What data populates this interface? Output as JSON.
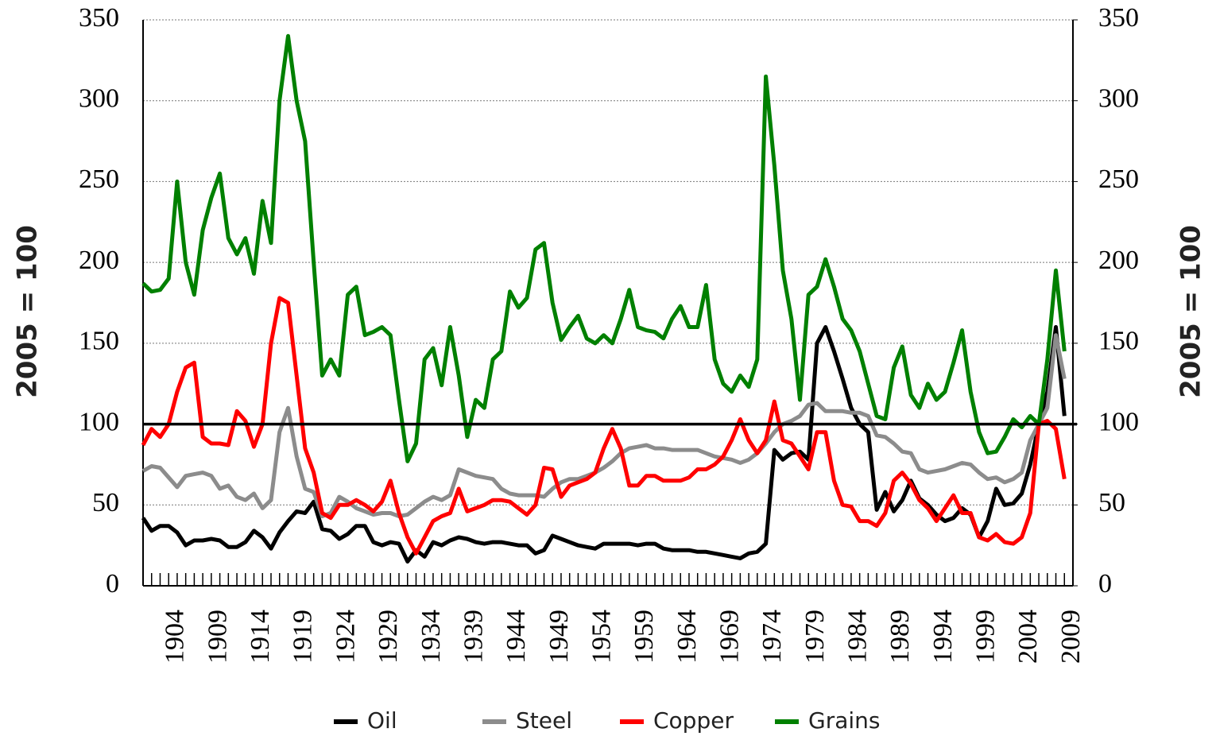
{
  "chart_data": {
    "type": "line",
    "ylabel": "2005 = 100",
    "y2label": "2005 = 100",
    "x": [
      1900,
      1901,
      1902,
      1903,
      1904,
      1905,
      1906,
      1907,
      1908,
      1909,
      1910,
      1911,
      1912,
      1913,
      1914,
      1915,
      1916,
      1917,
      1918,
      1919,
      1920,
      1921,
      1922,
      1923,
      1924,
      1925,
      1926,
      1927,
      1928,
      1929,
      1930,
      1931,
      1932,
      1933,
      1934,
      1935,
      1936,
      1937,
      1938,
      1939,
      1940,
      1941,
      1942,
      1943,
      1944,
      1945,
      1946,
      1947,
      1948,
      1949,
      1950,
      1951,
      1952,
      1953,
      1954,
      1955,
      1956,
      1957,
      1958,
      1959,
      1960,
      1961,
      1962,
      1963,
      1964,
      1965,
      1966,
      1967,
      1968,
      1969,
      1970,
      1971,
      1972,
      1973,
      1974,
      1975,
      1976,
      1977,
      1978,
      1979,
      1980,
      1981,
      1982,
      1983,
      1984,
      1985,
      1986,
      1987,
      1988,
      1989,
      1990,
      1991,
      1992,
      1993,
      1994,
      1995,
      1996,
      1997,
      1998,
      1999,
      2000,
      2001,
      2002,
      2003,
      2004,
      2005,
      2006,
      2007,
      2008
    ],
    "series": [
      {
        "name": "Oil",
        "color": "#000000",
        "values": [
          42,
          34,
          37,
          37,
          33,
          25,
          28,
          28,
          29,
          28,
          24,
          24,
          27,
          34,
          30,
          23,
          33,
          40,
          46,
          45,
          52,
          35,
          34,
          29,
          32,
          37,
          37,
          27,
          25,
          27,
          26,
          15,
          22,
          18,
          27,
          25,
          28,
          30,
          29,
          27,
          26,
          27,
          27,
          26,
          25,
          25,
          20,
          22,
          31,
          29,
          27,
          25,
          24,
          23,
          26,
          26,
          26,
          26,
          25,
          26,
          26,
          23,
          22,
          22,
          22,
          21,
          21,
          20,
          19,
          18,
          17,
          20,
          21,
          26,
          84,
          78,
          82,
          83,
          78,
          150,
          160,
          145,
          128,
          110,
          100,
          95,
          47,
          58,
          46,
          53,
          65,
          54,
          50,
          44,
          40,
          42,
          48,
          44,
          30,
          40,
          60,
          50,
          51,
          57,
          75,
          100,
          120,
          160,
          105
        ]
      },
      {
        "name": "Steel",
        "color": "#8c8c8c",
        "values": [
          71,
          74,
          73,
          67,
          61,
          68,
          69,
          70,
          68,
          60,
          62,
          55,
          53,
          57,
          48,
          53,
          95,
          110,
          80,
          60,
          58,
          43,
          45,
          55,
          52,
          48,
          46,
          44,
          45,
          45,
          43,
          44,
          48,
          52,
          55,
          53,
          56,
          72,
          70,
          68,
          67,
          66,
          60,
          57,
          56,
          56,
          56,
          55,
          60,
          64,
          66,
          66,
          68,
          70,
          73,
          77,
          82,
          85,
          86,
          87,
          85,
          85,
          84,
          84,
          84,
          84,
          82,
          80,
          79,
          78,
          76,
          78,
          82,
          88,
          95,
          100,
          102,
          105,
          112,
          113,
          108,
          108,
          108,
          107,
          107,
          105,
          93,
          92,
          88,
          83,
          82,
          72,
          70,
          71,
          72,
          74,
          76,
          75,
          70,
          66,
          67,
          64,
          66,
          70,
          90,
          100,
          110,
          155,
          128
        ]
      },
      {
        "name": "Copper",
        "color": "#ff0000",
        "values": [
          87,
          97,
          92,
          100,
          120,
          135,
          138,
          92,
          88,
          88,
          87,
          108,
          102,
          86,
          100,
          150,
          178,
          175,
          130,
          85,
          70,
          45,
          42,
          50,
          50,
          53,
          50,
          46,
          52,
          65,
          45,
          30,
          20,
          30,
          40,
          43,
          45,
          60,
          46,
          48,
          50,
          53,
          53,
          52,
          48,
          44,
          50,
          73,
          72,
          55,
          62,
          64,
          66,
          70,
          85,
          97,
          85,
          62,
          62,
          68,
          68,
          65,
          65,
          65,
          67,
          72,
          72,
          75,
          80,
          90,
          103,
          90,
          82,
          90,
          114,
          90,
          88,
          80,
          72,
          95,
          95,
          65,
          50,
          49,
          40,
          40,
          37,
          45,
          65,
          70,
          63,
          53,
          48,
          40,
          48,
          56,
          45,
          45,
          30,
          28,
          32,
          27,
          26,
          30,
          45,
          100,
          102,
          97,
          66
        ]
      },
      {
        "name": "Grains",
        "color": "#008000",
        "values": [
          187,
          182,
          183,
          190,
          250,
          200,
          180,
          220,
          240,
          255,
          215,
          205,
          215,
          193,
          238,
          212,
          300,
          340,
          300,
          275,
          200,
          130,
          140,
          130,
          180,
          185,
          155,
          157,
          160,
          155,
          115,
          77,
          88,
          140,
          147,
          124,
          160,
          130,
          92,
          115,
          110,
          140,
          145,
          182,
          172,
          178,
          208,
          212,
          175,
          152,
          160,
          167,
          153,
          150,
          155,
          150,
          165,
          183,
          160,
          158,
          157,
          153,
          165,
          173,
          160,
          160,
          186,
          140,
          125,
          120,
          130,
          123,
          140,
          315,
          260,
          195,
          165,
          115,
          180,
          185,
          202,
          185,
          165,
          158,
          145,
          125,
          105,
          103,
          135,
          148,
          118,
          110,
          125,
          115,
          120,
          138,
          158,
          120,
          95,
          82,
          83,
          92,
          103,
          98,
          105,
          100,
          140,
          195,
          145
        ]
      }
    ],
    "reference_line": 100,
    "xlim": [
      1900,
      2009
    ],
    "xticks": [
      1904,
      1909,
      1914,
      1919,
      1924,
      1929,
      1934,
      1939,
      1944,
      1949,
      1954,
      1959,
      1964,
      1969,
      1974,
      1979,
      1984,
      1989,
      1994,
      1999,
      2004,
      2009
    ],
    "xminor_ticks": [
      1900,
      1901,
      1902,
      1903,
      1904,
      1905,
      1906,
      1907,
      1908,
      1909,
      1910,
      1911,
      1912,
      1913,
      1914,
      1915,
      1916,
      1917,
      1918,
      1919,
      1920,
      1921,
      1922,
      1923,
      1924,
      1925,
      1926,
      1927,
      1928,
      1929,
      1930,
      1931,
      1932,
      1933,
      1934,
      1935,
      1936,
      1937,
      1938,
      1939,
      1940,
      1941,
      1942,
      1943,
      1944,
      1945,
      1946,
      1947,
      1948,
      1949,
      1950,
      1951,
      1952,
      1953,
      1954,
      1955,
      1956,
      1957,
      1958,
      1959,
      1960,
      1961,
      1962,
      1963,
      1964,
      1965,
      1966,
      1967,
      1968,
      1969,
      1970,
      1971,
      1972,
      1973,
      1974,
      1975,
      1976,
      1977,
      1978,
      1979,
      1980,
      1981,
      1982,
      1983,
      1984,
      1985,
      1986,
      1987,
      1988,
      1989,
      1990,
      1991,
      1992,
      1993,
      1994,
      1995,
      1996,
      1997,
      1998,
      1999,
      2000,
      2001,
      2002,
      2003,
      2004,
      2005,
      2006,
      2007,
      2008,
      2009
    ],
    "ylim": [
      0,
      350
    ],
    "yticks": [
      0,
      50,
      100,
      150,
      200,
      250,
      300,
      350
    ],
    "y2lim": [
      0,
      350
    ],
    "y2ticks": [
      0,
      50,
      100,
      150,
      200,
      250,
      300,
      350
    ],
    "grid": true,
    "legend": "bottom"
  }
}
